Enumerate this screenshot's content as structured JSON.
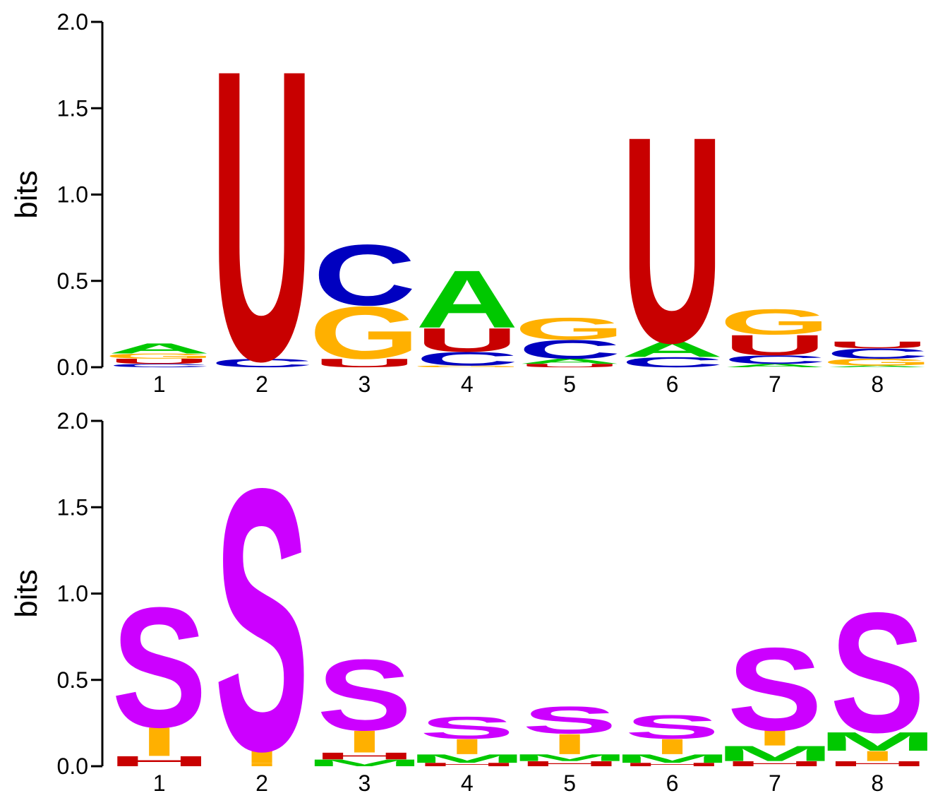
{
  "chart_data": [
    {
      "type": "sequence-logo",
      "alphabet": "RNA",
      "ylabel": "bits",
      "ylim": [
        0,
        2.0
      ],
      "yticks": [
        "0.0",
        "0.5",
        "1.0",
        "1.5",
        "2.0"
      ],
      "positions": [
        "1",
        "2",
        "3",
        "4",
        "5",
        "6",
        "7",
        "8"
      ],
      "colors": {
        "A": "#00c800",
        "C": "#0000c0",
        "G": "#ffb000",
        "U": "#c80000"
      },
      "stacks": [
        [
          {
            "l": "C",
            "h": 0.02
          },
          {
            "l": "U",
            "h": 0.03
          },
          {
            "l": "G",
            "h": 0.03
          },
          {
            "l": "A",
            "h": 0.06
          }
        ],
        [
          {
            "l": "C",
            "h": 0.05
          },
          {
            "l": "U",
            "h": 1.72
          }
        ],
        [
          {
            "l": "U",
            "h": 0.05
          },
          {
            "l": "G",
            "h": 0.31
          },
          {
            "l": "C",
            "h": 0.36
          }
        ],
        [
          {
            "l": "G",
            "h": 0.01
          },
          {
            "l": "C",
            "h": 0.08
          },
          {
            "l": "U",
            "h": 0.14
          },
          {
            "l": "A",
            "h": 0.34
          }
        ],
        [
          {
            "l": "U",
            "h": 0.02
          },
          {
            "l": "A",
            "h": 0.03
          },
          {
            "l": "C",
            "h": 0.11
          },
          {
            "l": "G",
            "h": 0.13
          }
        ],
        [
          {
            "l": "C",
            "h": 0.06
          },
          {
            "l": "A",
            "h": 0.09
          },
          {
            "l": "U",
            "h": 1.22
          }
        ],
        [
          {
            "l": "A",
            "h": 0.02
          },
          {
            "l": "C",
            "h": 0.05
          },
          {
            "l": "U",
            "h": 0.12
          },
          {
            "l": "G",
            "h": 0.15
          }
        ],
        [
          {
            "l": "A",
            "h": 0.01
          },
          {
            "l": "G",
            "h": 0.04
          },
          {
            "l": "C",
            "h": 0.06
          },
          {
            "l": "U",
            "h": 0.04
          }
        ]
      ]
    },
    {
      "type": "sequence-logo",
      "alphabet": "secondary-structure",
      "ylabel": "bits",
      "ylim": [
        0,
        2.0
      ],
      "yticks": [
        "0.0",
        "0.5",
        "1.0",
        "1.5",
        "2.0"
      ],
      "positions": [
        "1",
        "2",
        "3",
        "4",
        "5",
        "6",
        "7",
        "8"
      ],
      "colors": {
        "S": "#cc00ff",
        "I": "#ffb000",
        "M": "#00c800",
        "H": "#c80000",
        "B": "#c80000"
      },
      "stacks": [
        [
          {
            "l": "H",
            "h": 0.06
          },
          {
            "l": "I",
            "h": 0.17
          },
          {
            "l": "S",
            "h": 0.71
          }
        ],
        [
          {
            "l": "I",
            "h": 0.02
          },
          {
            "l": "I",
            "h": 0.08
          },
          {
            "l": "S",
            "h": 1.55
          }
        ],
        [
          {
            "l": "M",
            "h": 0.04
          },
          {
            "l": "H",
            "h": 0.04
          },
          {
            "l": "I",
            "h": 0.13
          },
          {
            "l": "S",
            "h": 0.42
          }
        ],
        [
          {
            "l": "H",
            "h": 0.02
          },
          {
            "l": "M",
            "h": 0.05
          },
          {
            "l": "I",
            "h": 0.09
          },
          {
            "l": "S",
            "h": 0.13
          }
        ],
        [
          {
            "l": "H",
            "h": 0.03
          },
          {
            "l": "M",
            "h": 0.04
          },
          {
            "l": "I",
            "h": 0.12
          },
          {
            "l": "S",
            "h": 0.16
          }
        ],
        [
          {
            "l": "H",
            "h": 0.02
          },
          {
            "l": "M",
            "h": 0.05
          },
          {
            "l": "I",
            "h": 0.09
          },
          {
            "l": "S",
            "h": 0.14
          }
        ],
        [
          {
            "l": "H",
            "h": 0.03
          },
          {
            "l": "M",
            "h": 0.09
          },
          {
            "l": "I",
            "h": 0.09
          },
          {
            "l": "S",
            "h": 0.49
          }
        ],
        [
          {
            "l": "H",
            "h": 0.03
          },
          {
            "l": "I",
            "h": 0.06
          },
          {
            "l": "M",
            "h": 0.11
          },
          {
            "l": "S",
            "h": 0.71
          }
        ]
      ]
    }
  ]
}
